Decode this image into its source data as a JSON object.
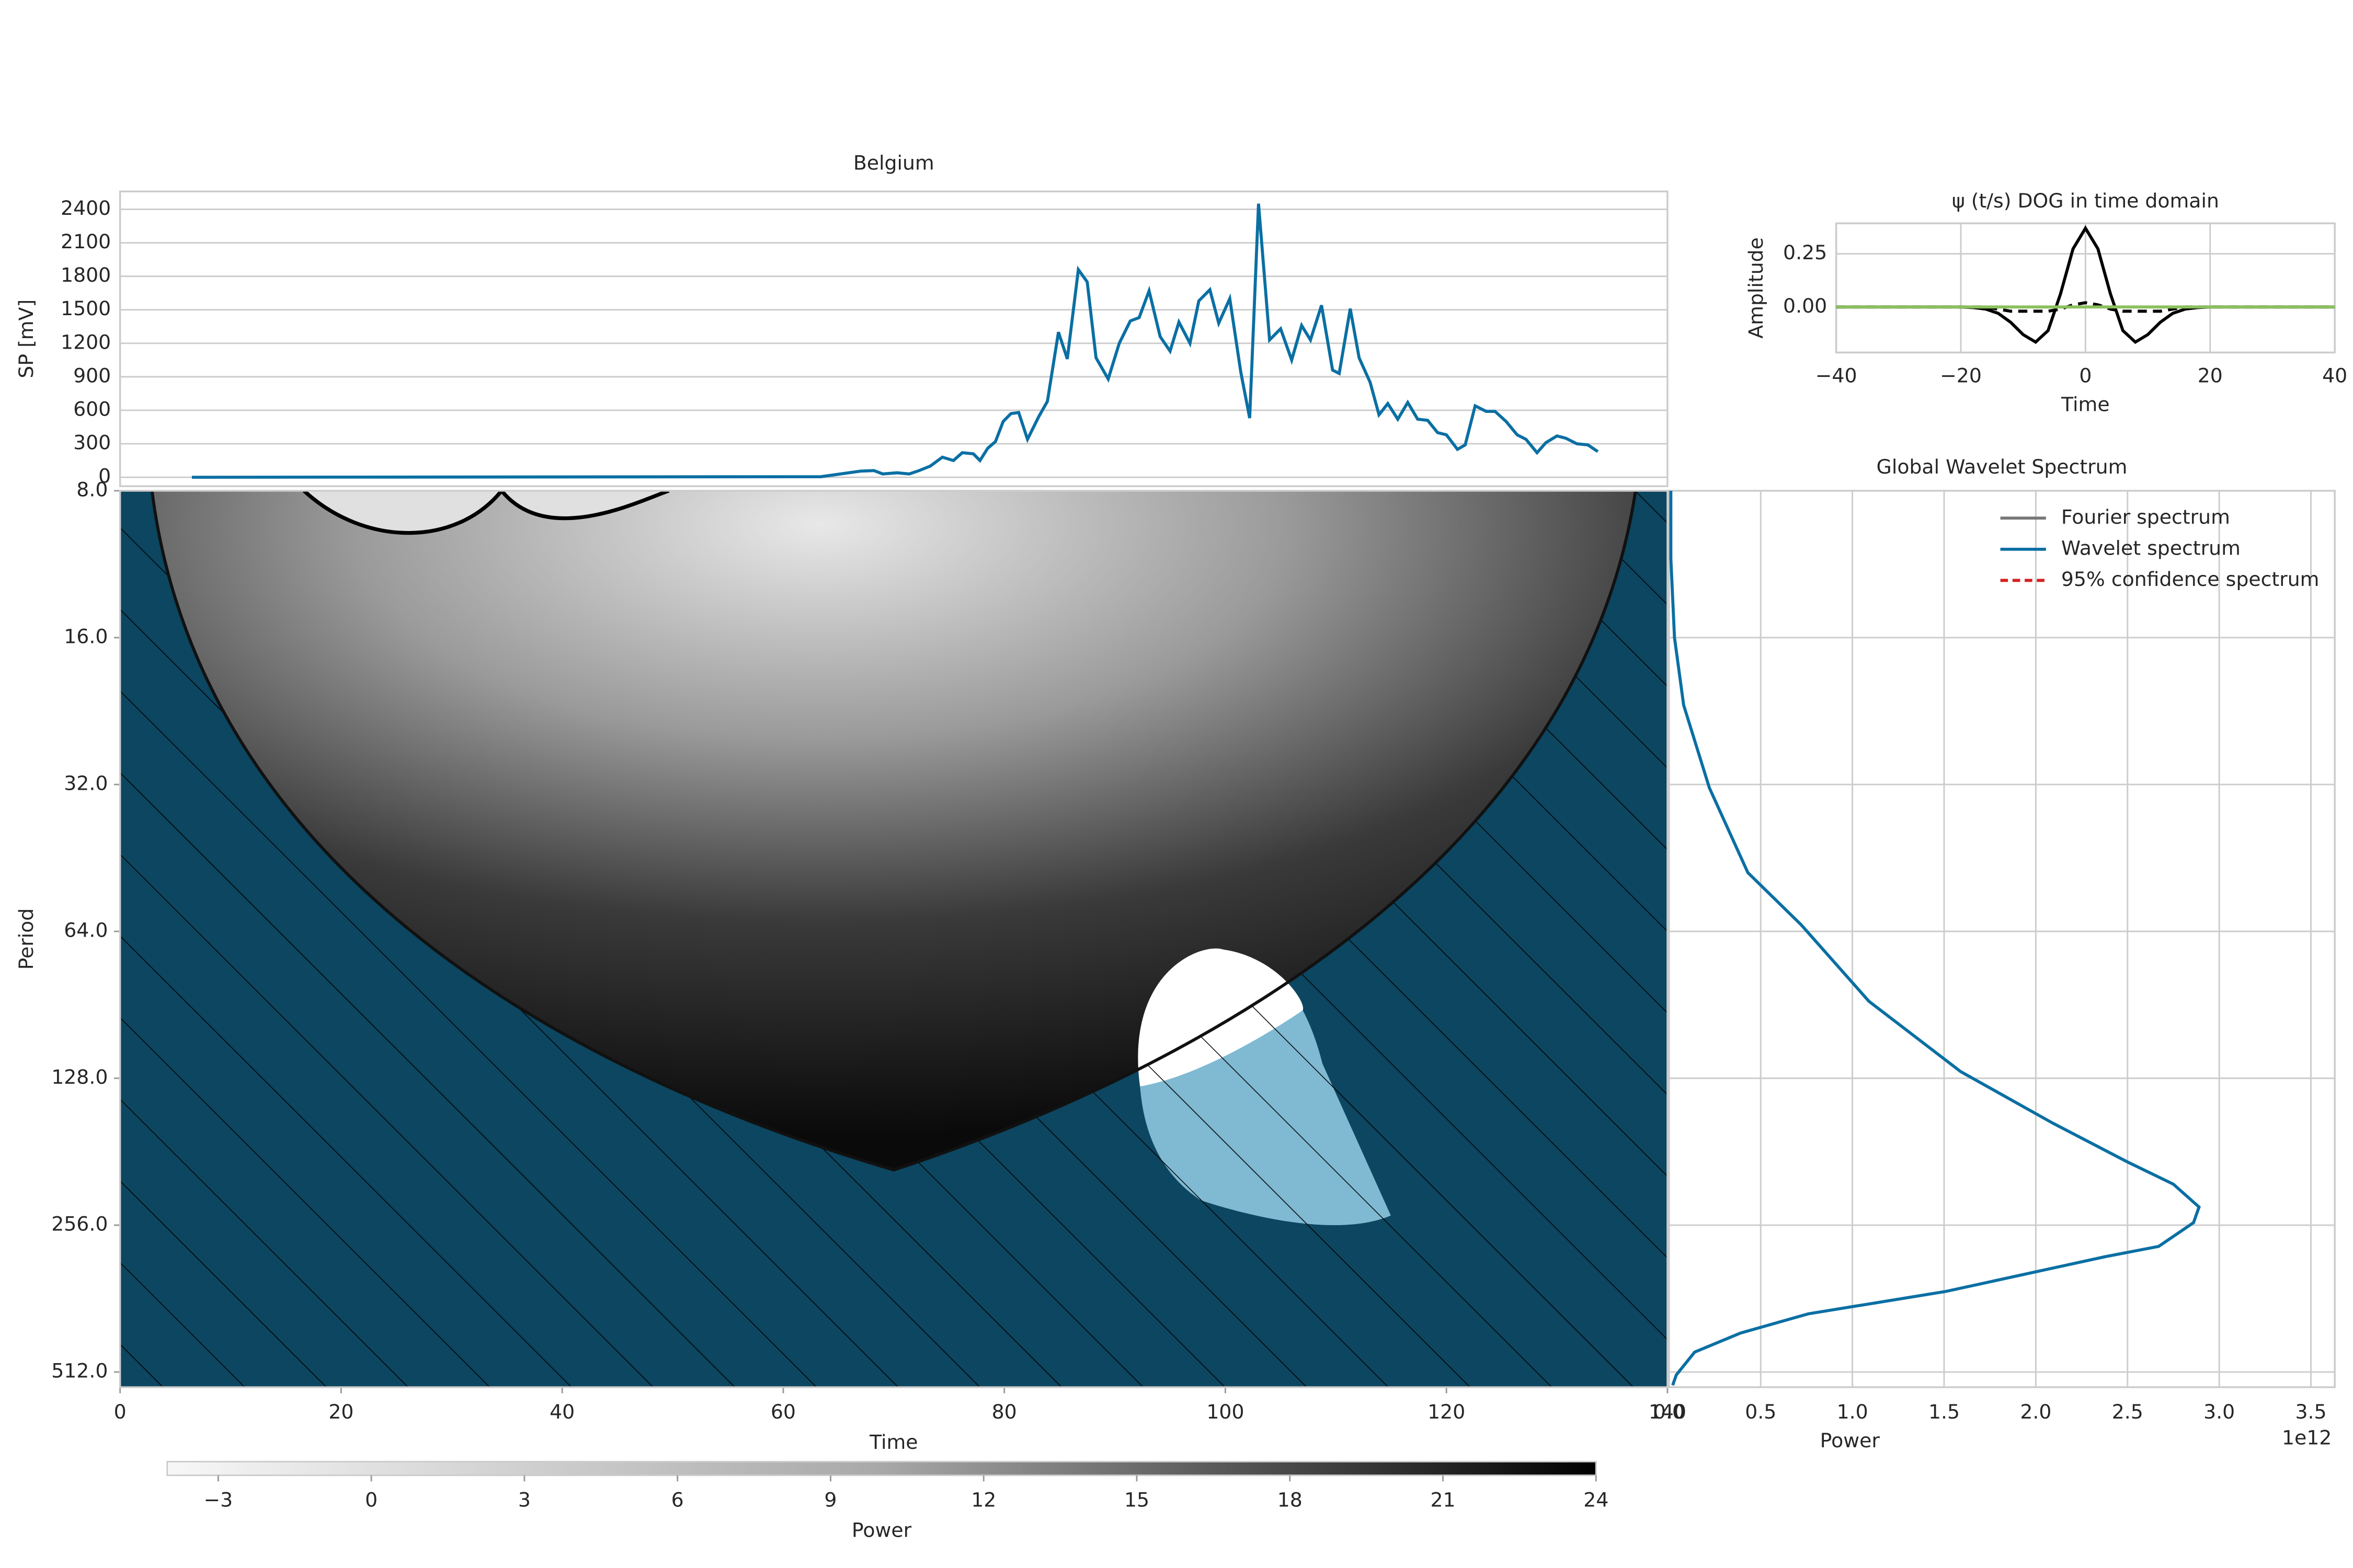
{
  "chart_data": [
    {
      "type": "line",
      "title": "Belgium",
      "ylabel": "SP [mV]",
      "color": "#0a6fa3",
      "grid": true,
      "xlim": [
        0,
        140
      ],
      "ylim": [
        -80,
        2560
      ],
      "yticks": [
        0,
        300,
        600,
        900,
        1200,
        1500,
        1800,
        2100,
        2400
      ],
      "x": [
        6.5,
        63.4,
        67.0,
        68.2,
        69.0,
        70.3,
        71.4,
        72.3,
        73.3,
        74.4,
        75.4,
        76.2,
        77.2,
        77.8,
        78.5,
        79.2,
        79.9,
        80.6,
        81.3,
        82.1,
        83.1,
        83.9,
        84.9,
        85.7,
        86.7,
        87.5,
        88.3,
        89.4,
        90.4,
        91.4,
        92.2,
        93.1,
        94.1,
        95.0,
        95.8,
        96.8,
        97.6,
        98.6,
        99.4,
        100.4,
        101.4,
        102.2,
        103.0,
        104.0,
        105.0,
        106.0,
        106.9,
        107.7,
        108.7,
        109.7,
        110.3,
        111.3,
        112.1,
        113.1,
        113.9,
        114.7,
        115.6,
        116.5,
        117.4,
        118.3,
        119.2,
        120.0,
        121.0,
        121.7,
        122.6,
        123.6,
        124.4,
        125.4,
        126.4,
        127.2,
        128.2,
        129.0,
        130.0,
        130.8,
        131.8,
        132.8,
        133.7
      ],
      "values": [
        0,
        5,
        55,
        60,
        30,
        40,
        30,
        60,
        100,
        180,
        150,
        220,
        210,
        150,
        260,
        320,
        500,
        570,
        580,
        340,
        540,
        680,
        1300,
        1060,
        1860,
        1750,
        1070,
        880,
        1200,
        1400,
        1430,
        1670,
        1260,
        1130,
        1390,
        1200,
        1580,
        1680,
        1380,
        1600,
        940,
        530,
        2450,
        1230,
        1330,
        1050,
        1360,
        1230,
        1540,
        960,
        930,
        1510,
        1070,
        850,
        560,
        660,
        520,
        670,
        520,
        510,
        400,
        380,
        250,
        290,
        640,
        590,
        590,
        500,
        380,
        340,
        220,
        310,
        370,
        350,
        300,
        290,
        230
      ]
    },
    {
      "type": "contour",
      "xlabel": "Time",
      "ylabel": "Period",
      "xlim": [
        0,
        140
      ],
      "xticks": [
        0,
        20,
        40,
        60,
        80,
        100,
        120,
        140
      ],
      "ylim": [
        8,
        550
      ],
      "yscale": "log",
      "yinvert": true,
      "yticks": [
        {
          "value": 8,
          "label": "8.0"
        },
        {
          "value": 16,
          "label": "16.0"
        },
        {
          "value": 32,
          "label": "32.0"
        },
        {
          "value": 64,
          "label": "64.0"
        },
        {
          "value": 128,
          "label": "128.0"
        },
        {
          "value": 256,
          "label": "256.0"
        },
        {
          "value": 512,
          "label": "512.0"
        }
      ],
      "colorbar": {
        "label": "Power",
        "lim": [
          -4,
          24
        ],
        "ticks": [
          {
            "value": -3,
            "label": "−3"
          },
          0,
          3,
          6,
          9,
          12,
          15,
          18,
          21,
          24
        ]
      }
    },
    {
      "type": "line",
      "title": "ψ (t/s) DOG in time domain",
      "xlabel": "Time",
      "ylabel": "Amplitude",
      "grid": true,
      "xlim": [
        -40,
        40
      ],
      "ylim": [
        -0.214,
        0.393
      ],
      "xticks": [
        {
          "value": -40,
          "label": "−40"
        },
        {
          "value": -20,
          "label": "−20"
        },
        0,
        20,
        40
      ],
      "yticks": [
        {
          "value": 0,
          "label": "0.00"
        },
        {
          "value": 0.25,
          "label": "0.25"
        }
      ],
      "x": [
        -40,
        -38,
        -36,
        -34,
        -32,
        -30,
        -28,
        -26,
        -24,
        -22,
        -20,
        -18,
        -16,
        -14,
        -12,
        -10,
        -8,
        -6,
        -4,
        -2,
        0,
        2,
        4,
        6,
        8,
        10,
        12,
        14,
        16,
        18,
        20,
        22,
        24,
        26,
        28,
        30,
        32,
        34,
        36,
        38,
        40
      ],
      "series": [
        {
          "color": "#000000",
          "dash": false,
          "values": [
            0,
            0,
            0,
            0,
            0,
            0,
            0,
            0,
            0,
            0,
            0,
            -0.003,
            -0.01,
            -0.03,
            -0.072,
            -0.13,
            -0.165,
            -0.111,
            0.062,
            0.273,
            0.37,
            0.273,
            0.062,
            -0.111,
            -0.165,
            -0.13,
            -0.072,
            -0.03,
            -0.01,
            -0.003,
            0,
            0,
            0,
            0,
            0,
            0,
            0,
            0,
            0,
            0,
            0
          ]
        },
        {
          "color": "#000000",
          "dash": true,
          "values": [
            0,
            0,
            0,
            0,
            0,
            0,
            0,
            0,
            0,
            0,
            0,
            0,
            0,
            -0.01,
            -0.02,
            -0.02,
            -0.02,
            -0.02,
            -0.01,
            0.01,
            0.02,
            0.01,
            -0.01,
            -0.02,
            -0.02,
            -0.02,
            -0.02,
            -0.01,
            0,
            0,
            0,
            0,
            0,
            0,
            0,
            0,
            0,
            0,
            0,
            0,
            0
          ]
        },
        {
          "color": "#8cbf5f",
          "dash": false,
          "values": [
            0,
            0,
            0,
            0,
            0,
            0,
            0,
            0,
            0,
            0,
            0,
            0,
            0,
            0,
            0,
            0,
            0,
            0,
            0,
            0,
            0,
            0,
            0,
            0,
            0,
            0,
            0,
            0,
            0,
            0,
            0,
            0,
            0,
            0,
            0,
            0,
            0,
            0,
            0,
            0,
            0
          ]
        }
      ]
    },
    {
      "type": "spectrum",
      "title": "Global Wavelet Spectrum",
      "xlabel": "Power",
      "offset_label": "1e12",
      "grid": true,
      "legend": "upper right",
      "xlim": [
        0,
        3.63
      ],
      "ylim": [
        8,
        550
      ],
      "yscale": "log",
      "yinvert": true,
      "xticks": [
        {
          "value": 0,
          "label": "0.0"
        },
        {
          "value": 0.5,
          "label": "0.5"
        },
        {
          "value": 1,
          "label": "1.0"
        },
        {
          "value": 1.5,
          "label": "1.5"
        },
        {
          "value": 2,
          "label": "2.0"
        },
        {
          "value": 2.5,
          "label": "2.5"
        },
        {
          "value": 3,
          "label": "3.0"
        },
        {
          "value": 3.5,
          "label": "3.5"
        }
      ],
      "period": [
        8,
        11,
        16,
        22,
        32.5,
        48.5,
        62,
        89,
        124,
        158,
        190,
        211,
        235,
        253,
        283,
        297,
        350,
        389,
        426,
        466,
        519,
        545
      ],
      "series": [
        {
          "name": "Fourier spectrum",
          "color": "#777777",
          "dash": false
        },
        {
          "name": "Wavelet spectrum",
          "color": "#0a6fa3",
          "dash": false,
          "values": [
            0.01,
            0.01,
            0.03,
            0.08,
            0.22,
            0.43,
            0.72,
            1.09,
            1.59,
            2.09,
            2.5,
            2.75,
            2.89,
            2.86,
            2.67,
            2.38,
            1.51,
            0.76,
            0.39,
            0.14,
            0.04,
            0.02
          ]
        },
        {
          "name": "95% confidence spectrum",
          "color": "#d62020",
          "dash": true
        }
      ]
    }
  ]
}
